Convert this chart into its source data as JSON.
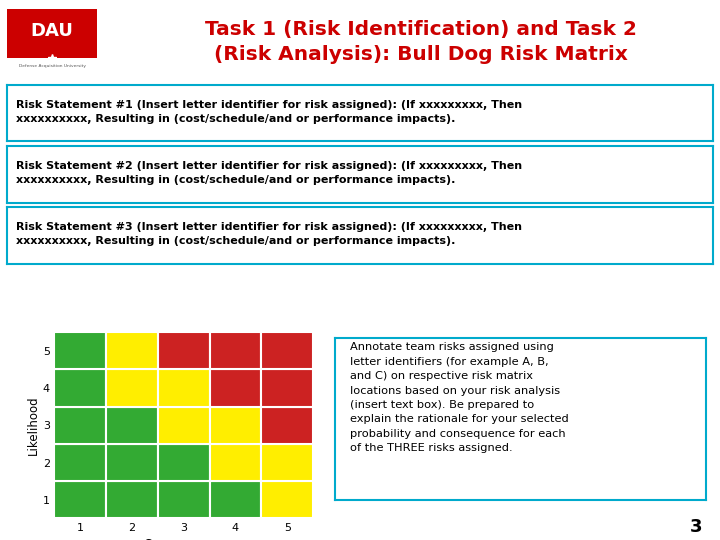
{
  "title": "Task 1 (Risk Identification) and Task 2\n(Risk Analysis): Bull Dog Risk Matrix",
  "title_color": "#cc0000",
  "background_color": "#ffffff",
  "header_line_color": "#c8a060",
  "risk_statements_line1": [
    "Risk Statement #1 (Insert letter identifier for risk assigned): (If xxxxxxxxx, Then",
    "Risk Statement #2 (Insert letter identifier for risk assigned): (If xxxxxxxxx, Then",
    "Risk Statement #3 (Insert letter identifier for risk assigned): (If xxxxxxxxx, Then"
  ],
  "risk_statements_line2": [
    "xxxxxxxxxx, Resulting in (cost/schedule/and or performance impacts).",
    "xxxxxxxxxx, Resulting in (cost/schedule/and or performance impacts).",
    "xxxxxxxxxx, Resulting in (cost/schedule/and or performance impacts)."
  ],
  "box_border_color": "#00aacc",
  "matrix_colors": [
    [
      "#33aa33",
      "#33aa33",
      "#33aa33",
      "#33aa33",
      "#ffee00"
    ],
    [
      "#33aa33",
      "#33aa33",
      "#33aa33",
      "#ffee00",
      "#ffee00"
    ],
    [
      "#33aa33",
      "#33aa33",
      "#ffee00",
      "#ffee00",
      "#cc2222"
    ],
    [
      "#33aa33",
      "#ffee00",
      "#ffee00",
      "#cc2222",
      "#cc2222"
    ],
    [
      "#33aa33",
      "#ffee00",
      "#cc2222",
      "#cc2222",
      "#cc2222"
    ]
  ],
  "annotation_text": "Annotate team risks assigned using\nletter identifiers (for example A, B,\nand C) on respective risk matrix\nlocations based on your risk analysis\n(insert text box). Be prepared to\nexplain the rationale for your selected\nprobability and consequence for each\nof the THREE risks assigned.",
  "page_number": "3",
  "xlabel": "Consequence",
  "ylabel": "Likelihood"
}
